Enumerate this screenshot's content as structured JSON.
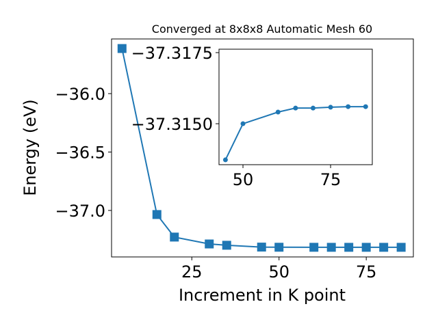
{
  "chart_data": [
    {
      "type": "line",
      "title": "Converged at 8x8x8 Automatic Mesh 60",
      "x_label": "Increment in K point",
      "y_label": "Energy (eV)",
      "x": [
        5,
        15,
        20,
        30,
        35,
        45,
        50,
        60,
        65,
        70,
        75,
        80,
        85
      ],
      "series": [
        {
          "color": "#1f77b4",
          "marker": "square",
          "values": [
            -35.614,
            -37.035,
            -37.228,
            -37.287,
            -37.298,
            -37.3137,
            -37.315,
            -37.3154,
            -37.3156,
            -37.3156,
            -37.3156,
            -37.3156,
            -37.3156
          ]
        }
      ],
      "xlim": [
        2,
        88.5
      ],
      "ylim": [
        -37.398,
        -35.532
      ],
      "xticks": [
        25,
        50,
        75
      ],
      "yticks": [
        {
          "value": -36.0,
          "label": "−36.0"
        },
        {
          "value": -36.5,
          "label": "−36.5"
        },
        {
          "value": -37.0,
          "label": "−37.0"
        }
      ]
    },
    {
      "type": "line",
      "x": [
        45,
        50,
        60,
        65,
        70,
        75,
        80,
        85
      ],
      "series": [
        {
          "color": "#1f77b4",
          "marker": "circle",
          "values": [
            -37.31373,
            -37.315,
            -37.31541,
            -37.31555,
            -37.31555,
            -37.31558,
            -37.3156,
            -37.3156
          ]
        }
      ],
      "xlim": [
        43.16,
        86.9
      ],
      "ylim": [
        -37.31356,
        -37.31762
      ],
      "xticks": [
        50,
        75
      ],
      "yticks": [
        {
          "value": -37.3175,
          "label": "−37.3175"
        },
        {
          "value": -37.315,
          "label": "−37.3150"
        }
      ]
    }
  ]
}
